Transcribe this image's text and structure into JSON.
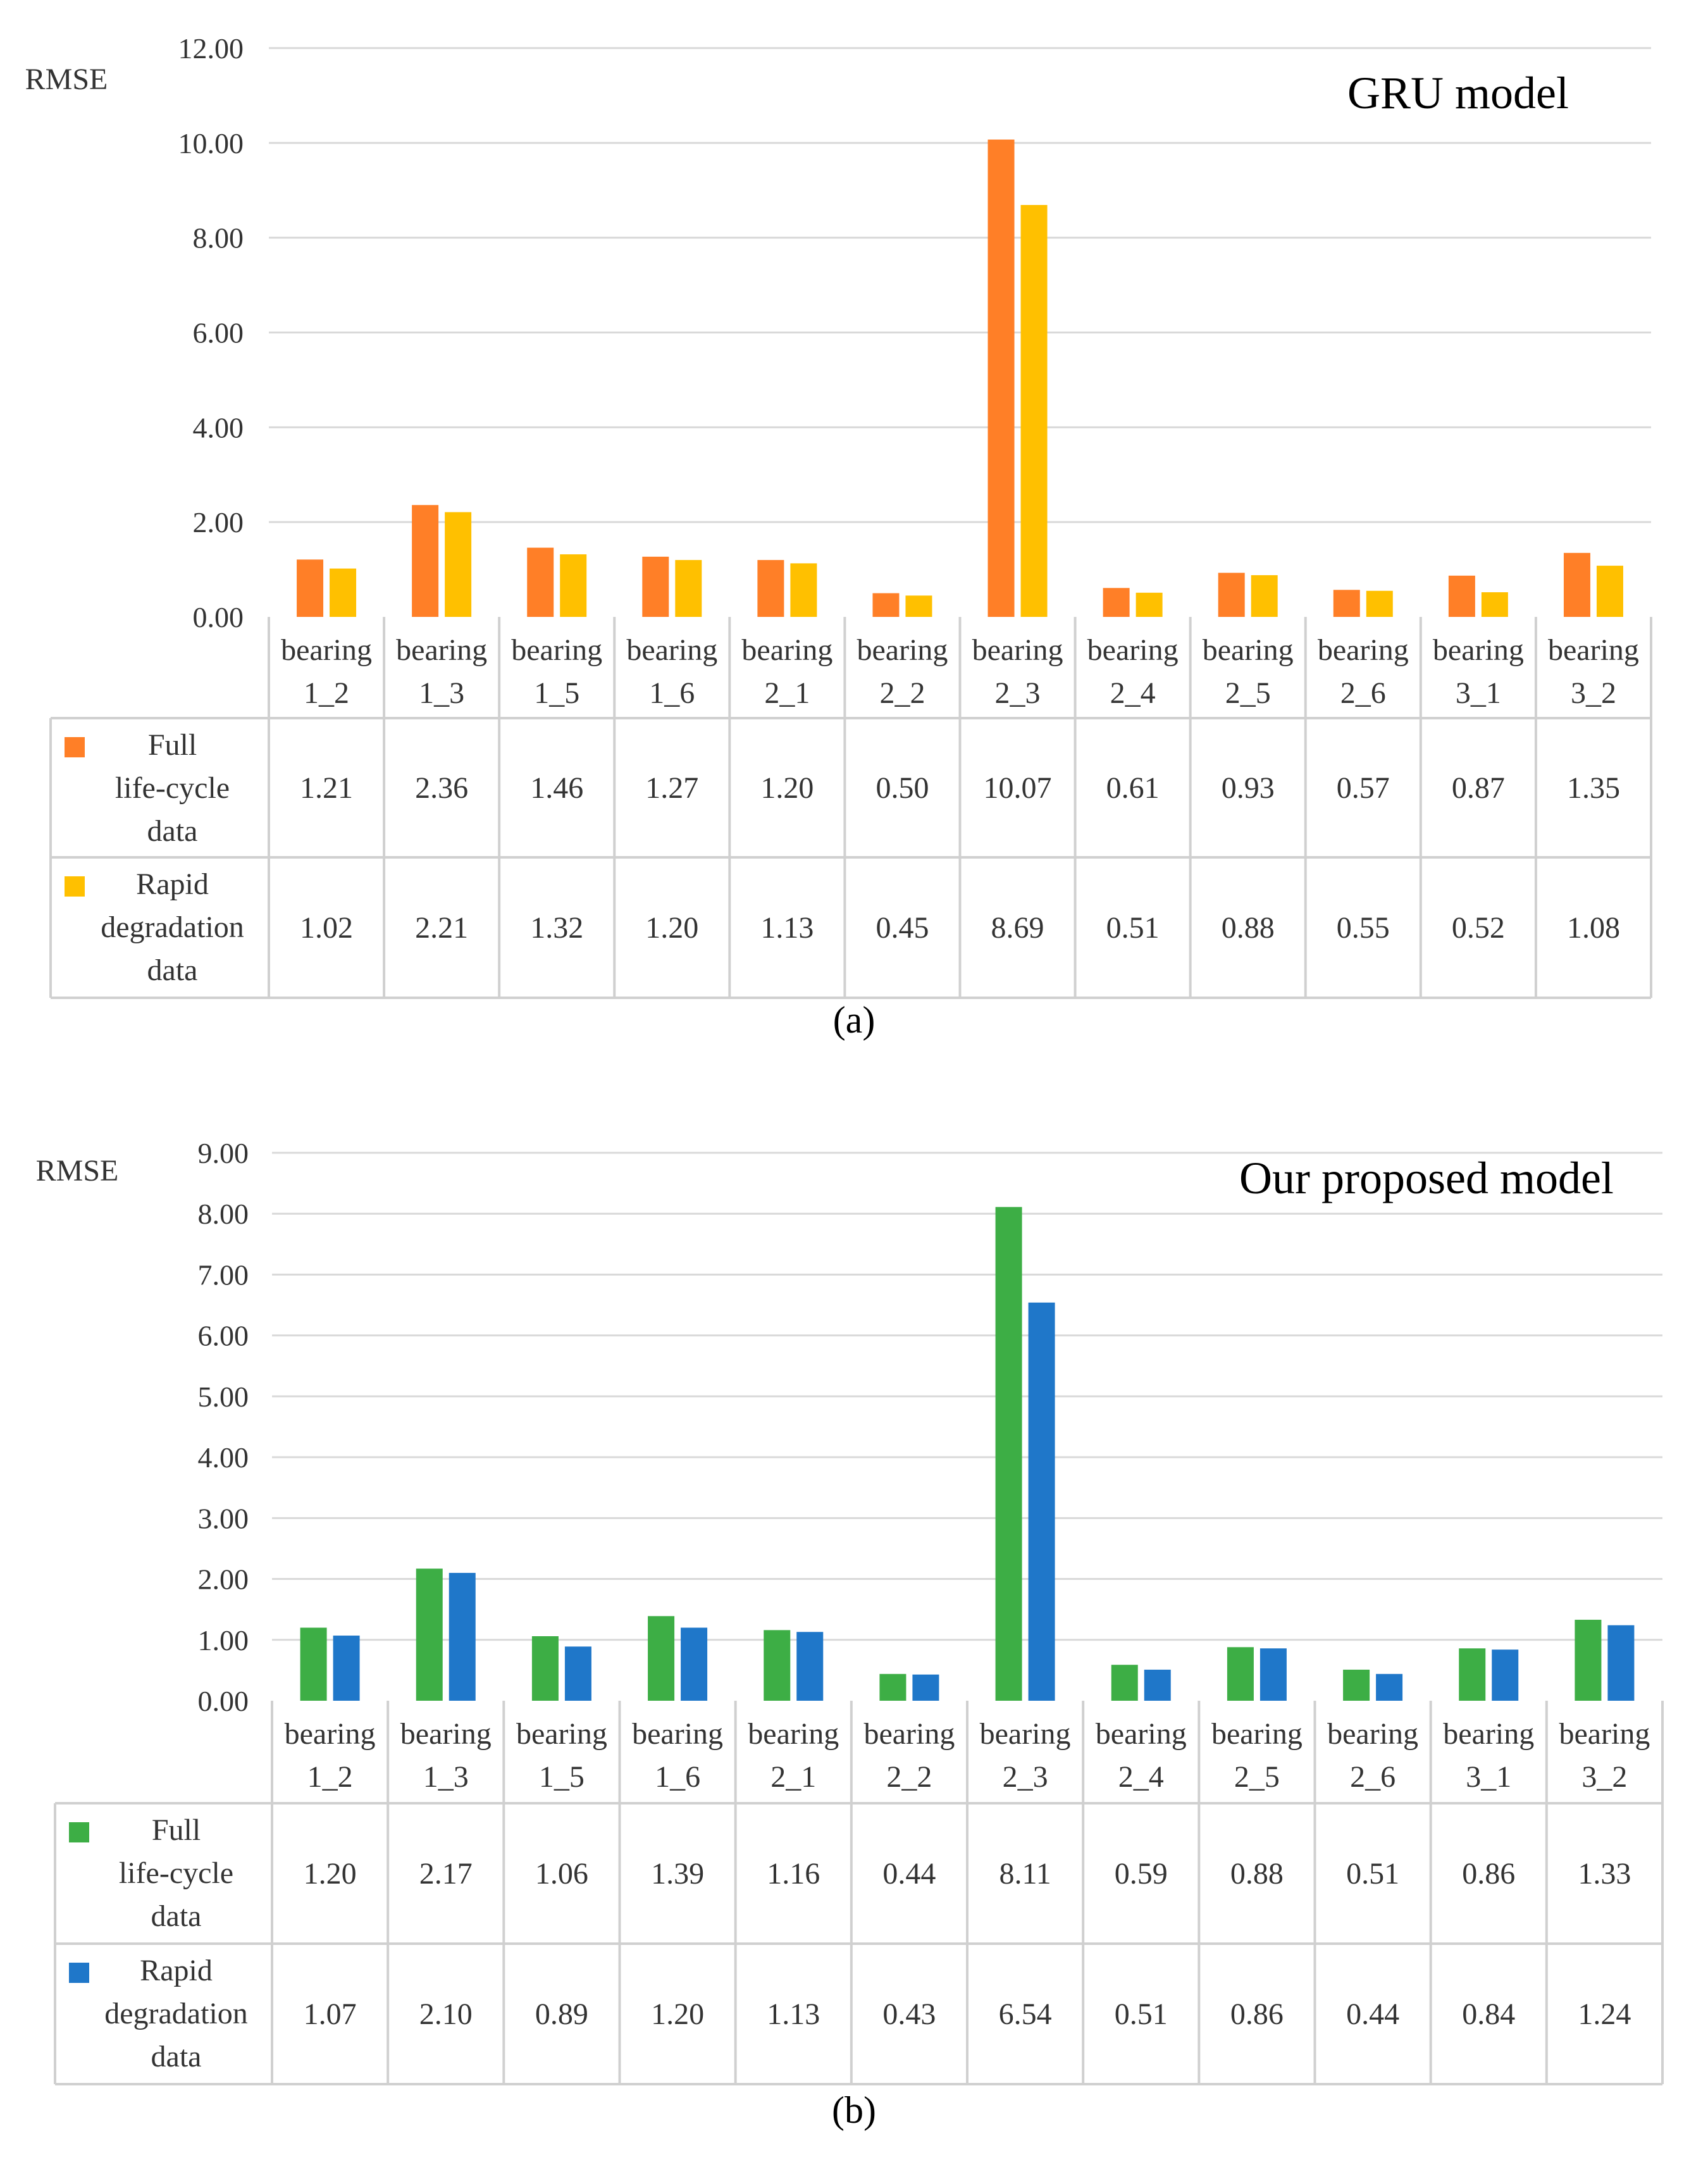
{
  "colors": {
    "a_full": "#FF7F27",
    "a_rapid": "#FFC000",
    "b_full": "#3DAE45",
    "b_rapid": "#1F77C9",
    "grid": "#D9D9D9",
    "table": "#D0D0D0",
    "text": "#333333"
  },
  "chart_data": [
    {
      "type": "bar",
      "panel_label": "(a)",
      "title": "GRU model",
      "ylabel": "RMSE",
      "ylim": [
        0,
        12
      ],
      "ytick_step": 2,
      "yticks": [
        "0.00",
        "2.00",
        "4.00",
        "6.00",
        "8.00",
        "10.00",
        "12.00"
      ],
      "grid": true,
      "categories": [
        [
          "bearing",
          "1_2"
        ],
        [
          "bearing",
          "1_3"
        ],
        [
          "bearing",
          "1_5"
        ],
        [
          "bearing",
          "1_6"
        ],
        [
          "bearing",
          "2_1"
        ],
        [
          "bearing",
          "2_2"
        ],
        [
          "bearing",
          "2_3"
        ],
        [
          "bearing",
          "2_4"
        ],
        [
          "bearing",
          "2_5"
        ],
        [
          "bearing",
          "2_6"
        ],
        [
          "bearing",
          "3_1"
        ],
        [
          "bearing",
          "3_2"
        ]
      ],
      "series": [
        {
          "name": [
            "Full",
            "life-cycle",
            "data"
          ],
          "color_key": "a_full",
          "values": [
            1.21,
            2.36,
            1.46,
            1.27,
            1.2,
            0.5,
            10.07,
            0.61,
            0.93,
            0.57,
            0.87,
            1.35
          ],
          "labels": [
            "1.21",
            "2.36",
            "1.46",
            "1.27",
            "1.20",
            "0.50",
            "10.07",
            "0.61",
            "0.93",
            "0.57",
            "0.87",
            "1.35"
          ]
        },
        {
          "name": [
            "Rapid",
            "degradation",
            "data"
          ],
          "color_key": "a_rapid",
          "values": [
            1.02,
            2.21,
            1.32,
            1.2,
            1.13,
            0.45,
            8.69,
            0.51,
            0.88,
            0.55,
            0.52,
            1.08
          ],
          "labels": [
            "1.02",
            "2.21",
            "1.32",
            "1.20",
            "1.13",
            "0.45",
            "8.69",
            "0.51",
            "0.88",
            "0.55",
            "0.52",
            "1.08"
          ]
        }
      ]
    },
    {
      "type": "bar",
      "panel_label": "(b)",
      "title": "Our proposed model",
      "ylabel": "RMSE",
      "ylim": [
        0,
        9
      ],
      "ytick_step": 1,
      "yticks": [
        "0.00",
        "1.00",
        "2.00",
        "3.00",
        "4.00",
        "5.00",
        "6.00",
        "7.00",
        "8.00",
        "9.00"
      ],
      "grid": true,
      "categories": [
        [
          "bearing",
          "1_2"
        ],
        [
          "bearing",
          "1_3"
        ],
        [
          "bearing",
          "1_5"
        ],
        [
          "bearing",
          "1_6"
        ],
        [
          "bearing",
          "2_1"
        ],
        [
          "bearing",
          "2_2"
        ],
        [
          "bearing",
          "2_3"
        ],
        [
          "bearing",
          "2_4"
        ],
        [
          "bearing",
          "2_5"
        ],
        [
          "bearing",
          "2_6"
        ],
        [
          "bearing",
          "3_1"
        ],
        [
          "bearing",
          "3_2"
        ]
      ],
      "series": [
        {
          "name": [
            "Full",
            "life-cycle",
            "data"
          ],
          "color_key": "b_full",
          "values": [
            1.2,
            2.17,
            1.06,
            1.39,
            1.16,
            0.44,
            8.11,
            0.59,
            0.88,
            0.51,
            0.86,
            1.33
          ],
          "labels": [
            "1.20",
            "2.17",
            "1.06",
            "1.39",
            "1.16",
            "0.44",
            "8.11",
            "0.59",
            "0.88",
            "0.51",
            "0.86",
            "1.33"
          ]
        },
        {
          "name": [
            "Rapid",
            "degradation",
            "data"
          ],
          "color_key": "b_rapid",
          "values": [
            1.07,
            2.1,
            0.89,
            1.2,
            1.13,
            0.43,
            6.54,
            0.51,
            0.86,
            0.44,
            0.84,
            1.24
          ],
          "labels": [
            "1.07",
            "2.10",
            "0.89",
            "1.20",
            "1.13",
            "0.43",
            "6.54",
            "0.51",
            "0.86",
            "0.44",
            "0.84",
            "1.24"
          ]
        }
      ]
    }
  ]
}
